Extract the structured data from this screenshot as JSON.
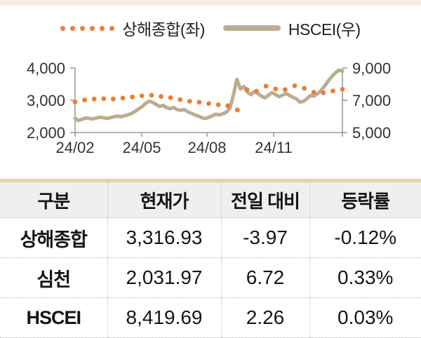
{
  "page": {
    "top_strip_color": "#FBEBDC",
    "background": "#ffffff"
  },
  "legend": {
    "items": [
      {
        "label": "상해종합(좌)",
        "color": "#ED7D31",
        "style": "dotted"
      },
      {
        "label": "HSCEI(우)",
        "color": "#BCAD90",
        "style": "solid"
      }
    ]
  },
  "chart_data": {
    "type": "line",
    "title": "",
    "x_tick_labels": [
      "24/02",
      "24/05",
      "24/08",
      "24/11"
    ],
    "left_axis": {
      "tick_labels": [
        "4,000",
        "3,000",
        "2,000"
      ],
      "tick_values": [
        4000,
        3000,
        2000
      ],
      "range": [
        2000,
        4000
      ]
    },
    "right_axis": {
      "tick_labels": [
        "9,000",
        "7,000",
        "5,000"
      ],
      "tick_values": [
        9000,
        7000,
        5000
      ],
      "range": [
        5000,
        9000
      ]
    },
    "axis_color": "#9b9b9b",
    "label_color": "#333333",
    "grid": false,
    "legend_position": "top",
    "series": [
      {
        "name": "상해종합(좌)",
        "axis": "left",
        "style": "dotted",
        "color": "#ED7D31",
        "values": [
          2950,
          3010,
          3040,
          3050,
          3040,
          3070,
          3100,
          3140,
          3155,
          3120,
          3080,
          3020,
          2970,
          2940,
          2900,
          2860,
          2830,
          2700,
          3330,
          3280,
          3440,
          3350,
          3330,
          3450,
          3370,
          3250,
          3230,
          3290,
          3340
        ]
      },
      {
        "name": "HSCEI(우)",
        "axis": "right",
        "style": "solid",
        "color": "#BCAD90",
        "values": [
          5880,
          5750,
          5820,
          5900,
          5880,
          5840,
          5900,
          5950,
          5920,
          5880,
          5920,
          5970,
          6020,
          5980,
          6040,
          6100,
          6180,
          6300,
          6450,
          6600,
          6800,
          6950,
          6880,
          6750,
          6620,
          6680,
          6550,
          6480,
          6550,
          6420,
          6380,
          6430,
          6300,
          6200,
          6100,
          6020,
          5920,
          5870,
          5940,
          6040,
          6140,
          6090,
          6160,
          6260,
          6500,
          7300,
          8300,
          7700,
          7850,
          7500,
          7350,
          7550,
          7420,
          7250,
          7150,
          7320,
          7480,
          7350,
          7220,
          7320,
          7420,
          7300,
          7180,
          7080,
          6880,
          6950,
          7120,
          7300,
          7260,
          7420,
          7620,
          7900,
          8200,
          8480,
          8700,
          8870,
          8800
        ]
      }
    ]
  },
  "table": {
    "headers": [
      "구분",
      "현재가",
      "전일 대비",
      "등락률"
    ],
    "rows": [
      [
        "상해종합",
        "3,316.93",
        "-3.97",
        "-0.12%"
      ],
      [
        "심천",
        "2,031.97",
        "6.72",
        "0.33%"
      ],
      [
        "HSCEI",
        "8,419.69",
        "2.26",
        "0.03%"
      ]
    ],
    "top_border_color": "#E5D3A0",
    "header_bg": "#EFEFEF"
  }
}
